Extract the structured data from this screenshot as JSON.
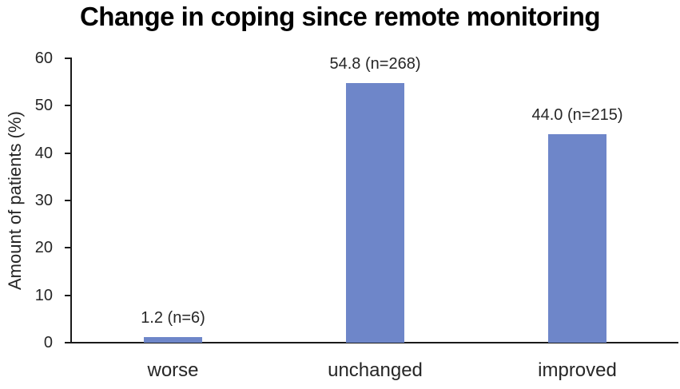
{
  "chart_data": {
    "type": "bar",
    "title": "Change in coping since remote monitoring",
    "categories": [
      "worse",
      "unchanged",
      "improved"
    ],
    "values": [
      1.2,
      54.8,
      44.0
    ],
    "counts": [
      6,
      268,
      215
    ],
    "bar_labels": [
      "1.2 (n=6)",
      "54.8 (n=268)",
      "44.0 (n=215)"
    ],
    "xlabel": "",
    "ylabel": "Amount of patients  (%)",
    "ylim": [
      0,
      60
    ],
    "yticks": [
      0,
      10,
      20,
      30,
      40,
      50,
      60
    ],
    "bar_color": "#6e86c9",
    "axis_color": "#1a1a1a",
    "text_color": "#262626",
    "title_color": "#000000",
    "grid": false,
    "legend": false
  }
}
